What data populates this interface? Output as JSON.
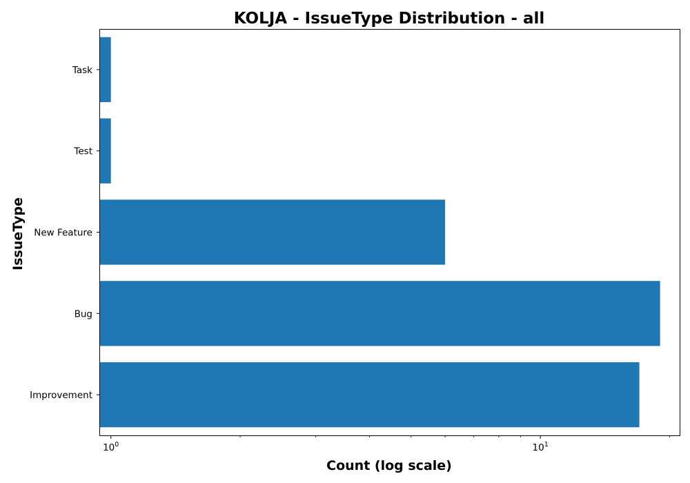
{
  "chart_data": {
    "type": "bar",
    "orientation": "horizontal",
    "title": "KOLJA - IssueType Distribution - all",
    "xlabel": "Count (log scale)",
    "ylabel": "IssueType",
    "xscale": "log",
    "xlim": [
      0.94,
      21.1
    ],
    "categories": [
      "Improvement",
      "Bug",
      "New Feature",
      "Test",
      "Task"
    ],
    "values": [
      17,
      19,
      6,
      1,
      1
    ],
    "major_ticks": [
      {
        "base": "10",
        "exp": "0",
        "value": 1
      },
      {
        "base": "10",
        "exp": "1",
        "value": 10
      }
    ],
    "minor_ticks": [
      2,
      3,
      4,
      5,
      6,
      7,
      8,
      9,
      20
    ],
    "bar_color": "#1f77b4",
    "grid": false,
    "legend": "none"
  }
}
